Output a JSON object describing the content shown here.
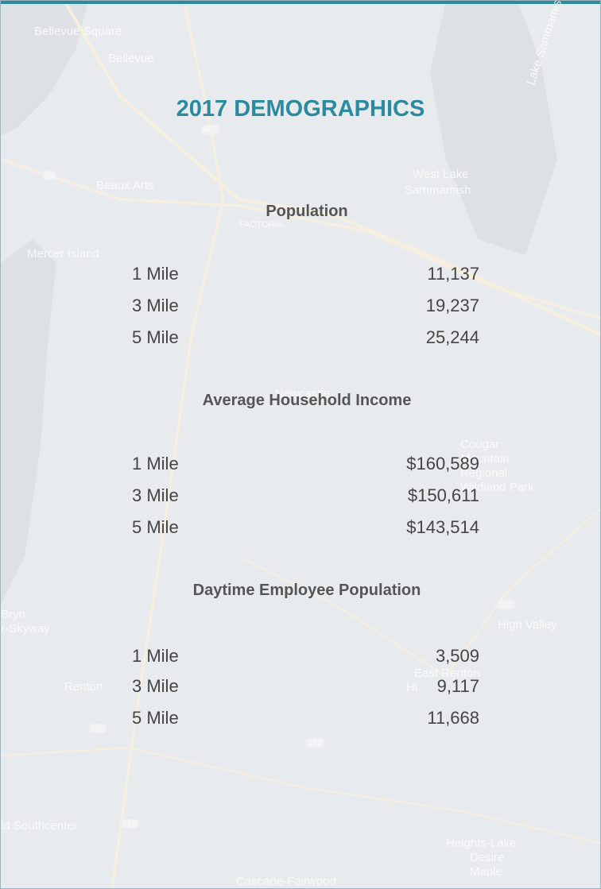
{
  "map_labels": [
    "Bellevue Square",
    "Bellevue",
    "Beaux Arts",
    "Mercer Island",
    "West Lake",
    "Sammamish",
    "Lake Sammamish",
    "FACTORIA",
    "Newcastle",
    "Cougar",
    "Mountain",
    "Regional",
    "Wildland Park",
    "High Valley",
    "Bryn",
    "r-Skyway",
    "Renton",
    "East Renton",
    "Hi",
    "ld Southcenter",
    "Maple",
    "Heights-Lake",
    "Desire",
    "Cascade-Fairwood",
    "405",
    "90",
    "900",
    "169",
    "167",
    "515"
  ],
  "title": "2017 DEMOGRAPHICS",
  "sections": [
    {
      "title": "Population",
      "rows": [
        [
          "1 Mile",
          "11,137"
        ],
        [
          "3 Mile",
          "19,237"
        ],
        [
          "5 Mile",
          "25,244"
        ]
      ]
    },
    {
      "title": "Average Household Income",
      "rows": [
        [
          "1 Mile",
          "$160,589"
        ],
        [
          "3 Mile",
          "$150,611"
        ],
        [
          "5 Mile",
          "$143,514"
        ]
      ]
    },
    {
      "title": "Daytime Employee Population",
      "rows": [
        [
          "1 Mile",
          "3,509"
        ],
        [
          "3 Mile",
          "9,117"
        ],
        [
          "5 Mile",
          "11,668"
        ]
      ]
    }
  ]
}
